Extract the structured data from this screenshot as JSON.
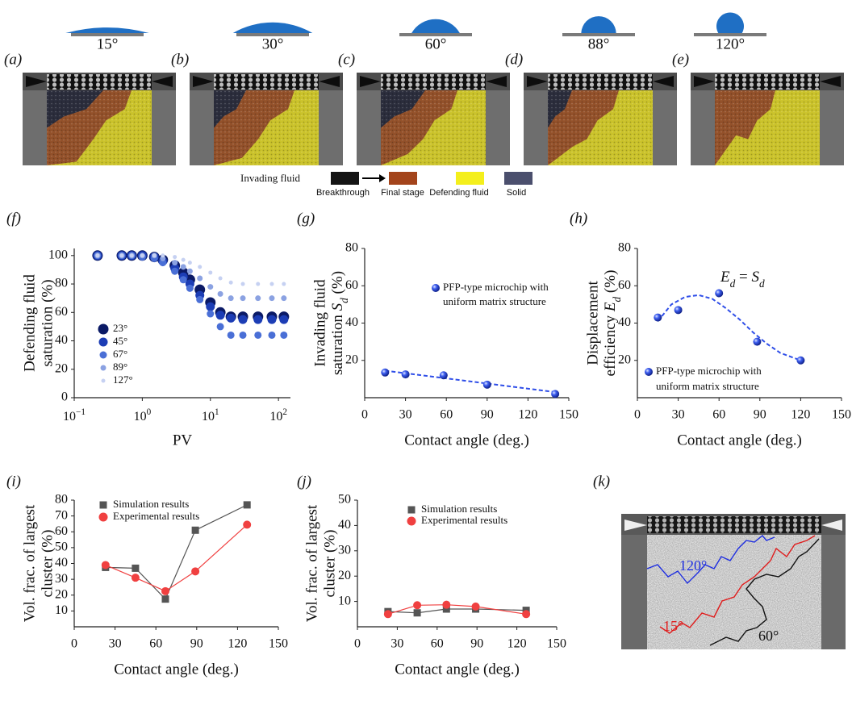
{
  "figure": {
    "panels_top": [
      {
        "letter": "(a)",
        "angle": 15,
        "angle_label": "15°"
      },
      {
        "letter": "(b)",
        "angle": 30,
        "angle_label": "30°"
      },
      {
        "letter": "(c)",
        "angle": 60,
        "angle_label": "60°"
      },
      {
        "letter": "(d)",
        "angle": 88,
        "angle_label": "88°"
      },
      {
        "letter": "(e)",
        "angle": 120,
        "angle_label": "120°"
      }
    ],
    "legend": {
      "title": "Invading fluid",
      "items": [
        {
          "label": "Breakthrough",
          "color": "#141414"
        },
        {
          "label": "Final stage",
          "color": "#a3441b"
        },
        {
          "label": "Defending fluid",
          "color": "#f4ef1c"
        },
        {
          "label": "Solid",
          "color": "#4b4f6d"
        }
      ]
    },
    "panel_k": {
      "letter": "(k)",
      "labels": [
        {
          "text": "120°",
          "color": "#1e2ee0"
        },
        {
          "text": "15°",
          "color": "#e01c1c"
        },
        {
          "text": "60°",
          "color": "#111111"
        }
      ]
    }
  },
  "chart_data": [
    {
      "type": "scatter",
      "letter": "(f)",
      "ylabel": [
        "Defending fluid",
        "saturation (%)"
      ],
      "xlabel": "PV",
      "log_x": true,
      "xlim": [
        0.1,
        150
      ],
      "ylim": [
        0,
        105
      ],
      "xticks": [
        {
          "value": 0.1,
          "label": "10",
          "sup": "−1"
        },
        {
          "value": 1,
          "label": "10",
          "sup": "0"
        },
        {
          "value": 10,
          "label": "10",
          "sup": "1"
        },
        {
          "value": 100,
          "label": "10",
          "sup": "2"
        }
      ],
      "yticks": [
        0,
        20,
        40,
        60,
        80,
        100
      ],
      "x": [
        0.22,
        0.5,
        0.7,
        1,
        1.5,
        2,
        3,
        4,
        5,
        7,
        10,
        14,
        20,
        30,
        50,
        80,
        120
      ],
      "series": [
        {
          "name": "23°",
          "color": "#0b1a66",
          "values": [
            100,
            100,
            100,
            100,
            99,
            97,
            93,
            88,
            83,
            76,
            67,
            60,
            57,
            57,
            57,
            57,
            57
          ]
        },
        {
          "name": "45°",
          "color": "#1c3db5",
          "values": [
            100,
            100,
            100,
            100,
            99,
            96,
            91,
            85,
            80,
            72,
            64,
            58,
            56,
            55,
            55,
            55,
            55
          ]
        },
        {
          "name": "67°",
          "color": "#4a6fd6",
          "values": [
            100,
            100,
            100,
            99,
            98,
            95,
            89,
            83,
            77,
            69,
            59,
            50,
            44,
            44,
            44,
            44,
            44
          ]
        },
        {
          "name": "89°",
          "color": "#8ba2e2",
          "values": [
            100,
            100,
            100,
            100,
            100,
            98,
            95,
            92,
            89,
            84,
            78,
            73,
            70,
            70,
            70,
            70,
            70
          ]
        },
        {
          "name": "127°",
          "color": "#c6d1f2",
          "values": [
            100,
            100,
            100,
            100,
            100,
            100,
            99,
            97,
            95,
            92,
            88,
            84,
            81,
            80,
            80,
            80,
            80
          ]
        }
      ]
    },
    {
      "type": "scatter",
      "letter": "(g)",
      "ylabel": [
        "Invading fluid",
        [
          {
            "text": "saturation "
          },
          {
            "text": "S",
            "italic": true
          },
          {
            "text": "d",
            "sub": true
          },
          {
            "text": " (%)"
          }
        ]
      ],
      "xlabel": "Contact angle (deg.)",
      "xlim": [
        0,
        150
      ],
      "ylim": [
        0,
        80
      ],
      "xticks": [
        0,
        30,
        60,
        90,
        120,
        150
      ],
      "yticks": [
        20,
        40,
        60,
        80
      ],
      "x": [
        15,
        30,
        58,
        90,
        140
      ],
      "series": [
        {
          "name": [
            "PFP-type microchip with",
            "uniform matrix structure"
          ],
          "color": "#1f3fe0",
          "values": [
            13.5,
            12.5,
            12,
            7,
            2
          ]
        }
      ],
      "fit_line": {
        "x": [
          15,
          140
        ],
        "values": [
          14.5,
          3
        ],
        "color": "#2f4ee8"
      }
    },
    {
      "type": "scatter",
      "letter": "(h)",
      "ylabel": [
        "Displacement",
        [
          {
            "text": "efficiency "
          },
          {
            "text": "E",
            "italic": true
          },
          {
            "text": "d",
            "sub": true
          },
          {
            "text": " (%)"
          }
        ]
      ],
      "xlabel": "Contact angle (deg.)",
      "annotation": [
        {
          "text": "E",
          "italic": true
        },
        {
          "text": "d",
          "sub": true
        },
        {
          "text": " = "
        },
        {
          "text": "S",
          "italic": true
        },
        {
          "text": "d",
          "sub": true
        }
      ],
      "xlim": [
        0,
        150
      ],
      "ylim": [
        0,
        80
      ],
      "xticks": [
        0,
        30,
        60,
        90,
        120,
        150
      ],
      "yticks": [
        20,
        40,
        60,
        80
      ],
      "x": [
        15,
        30,
        60,
        88,
        120
      ],
      "series": [
        {
          "name": [
            "PFP-type microchip with",
            "uniform matrix structure"
          ],
          "color": "#1f3fe0",
          "values": [
            43,
            47,
            56,
            30,
            20
          ]
        }
      ],
      "fit_line": {
        "x": [
          15,
          25,
          35,
          45,
          55,
          65,
          75,
          85,
          95,
          105,
          120
        ],
        "values": [
          41,
          50,
          54,
          55,
          53,
          48,
          42,
          35,
          29,
          24,
          20
        ],
        "color": "#2f4ee8"
      }
    },
    {
      "type": "line",
      "letter": "(i)",
      "ylabel": [
        "Vol. frac. of largest",
        "cluster (%)"
      ],
      "xlabel": "Contact angle (deg.)",
      "xlim": [
        0,
        150
      ],
      "ylim": [
        0,
        80
      ],
      "xticks": [
        0,
        30,
        60,
        90,
        120,
        150
      ],
      "yticks": [
        10,
        20,
        30,
        40,
        50,
        60,
        70,
        80
      ],
      "x": [
        23,
        45,
        67,
        89,
        127
      ],
      "series": [
        {
          "name": "Simulation results",
          "color": "#555555",
          "marker": "square",
          "values": [
            37.5,
            37,
            17.5,
            61,
            77
          ]
        },
        {
          "name": "Experimental results",
          "color": "#f04040",
          "marker": "circle",
          "values": [
            39,
            31,
            22.5,
            35,
            64.5
          ]
        }
      ]
    },
    {
      "type": "line",
      "letter": "(j)",
      "ylabel": [
        "Vol. frac. of largest",
        "cluster (%)"
      ],
      "xlabel": "Contact angle (deg.)",
      "xlim": [
        0,
        150
      ],
      "ylim": [
        0,
        50
      ],
      "xticks": [
        0,
        30,
        60,
        90,
        120,
        150
      ],
      "yticks": [
        10,
        20,
        30,
        40,
        50
      ],
      "x": [
        23,
        45,
        67,
        89,
        127
      ],
      "series": [
        {
          "name": "Simulation results",
          "color": "#555555",
          "marker": "square",
          "values": [
            6,
            5.5,
            7,
            7,
            6.5
          ]
        },
        {
          "name": "Experimental results",
          "color": "#f04040",
          "marker": "circle",
          "values": [
            5,
            8.5,
            8.7,
            8,
            5
          ]
        }
      ]
    }
  ]
}
